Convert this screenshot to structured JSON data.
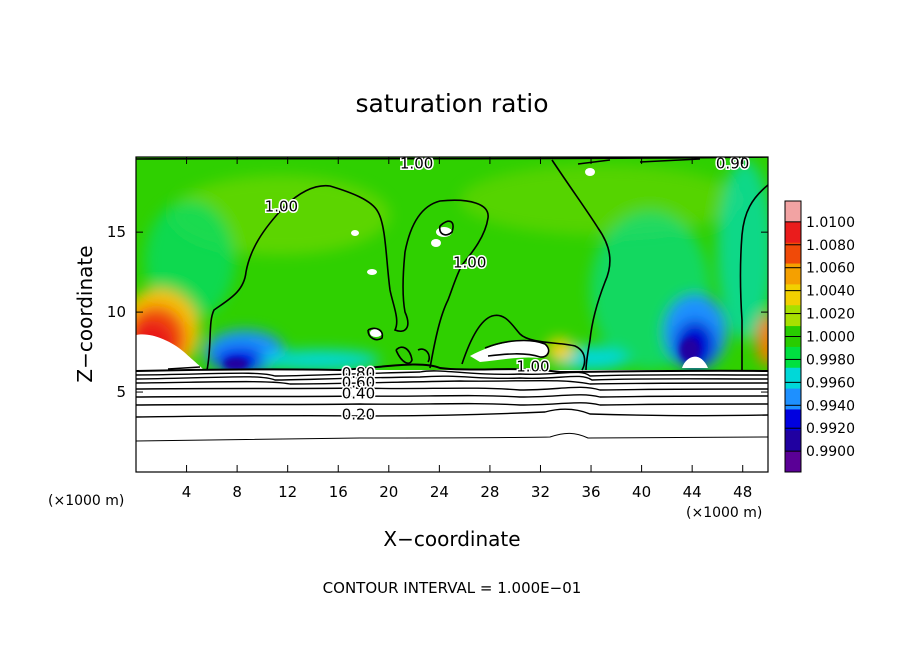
{
  "chart_data": {
    "type": "heatmap",
    "title": "saturation ratio",
    "xlabel": "X−coordinate",
    "ylabel": "Z−coordinate",
    "x_unit": "(×1000 m)",
    "x_unit_right": "(×1000 m)",
    "xlim": [
      0,
      50
    ],
    "ylim": [
      0,
      19.7
    ],
    "x_ticks": [
      4,
      8,
      12,
      16,
      20,
      24,
      28,
      32,
      36,
      40,
      44,
      48
    ],
    "y_ticks": [
      5,
      10,
      15
    ],
    "footer": "CONTOUR INTERVAL = 1.000E−01",
    "colorbar": {
      "levels": [
        "1.0100",
        "1.0080",
        "1.0060",
        "1.0040",
        "1.0020",
        "1.0000",
        "0.9980",
        "0.9960",
        "0.9940",
        "0.9920",
        "0.9900"
      ],
      "colors": [
        "#f2a3a3",
        "#ea1c1c",
        "#f04a08",
        "#f5a000",
        "#f2d000",
        "#a8e000",
        "#28cc00",
        "#00e040",
        "#00d8d8",
        "#1e90ff",
        "#0000e0",
        "#2000a0",
        "#5a0096"
      ]
    },
    "contour_labels": [
      {
        "text": "1.00",
        "x": 22.2,
        "y": 19.3
      },
      {
        "text": "0.90",
        "x": 47.2,
        "y": 19.3
      },
      {
        "text": "1.00",
        "x": 11.5,
        "y": 16.6
      },
      {
        "text": "1.00",
        "x": 26.4,
        "y": 13.1
      },
      {
        "text": "1.00",
        "x": 31.4,
        "y": 6.6
      },
      {
        "text": "0.80",
        "x": 17.6,
        "y": 6.2
      },
      {
        "text": "0.60",
        "x": 17.6,
        "y": 5.6
      },
      {
        "text": "0.40",
        "x": 17.6,
        "y": 4.9
      },
      {
        "text": "0.20",
        "x": 17.6,
        "y": 3.6
      }
    ]
  }
}
